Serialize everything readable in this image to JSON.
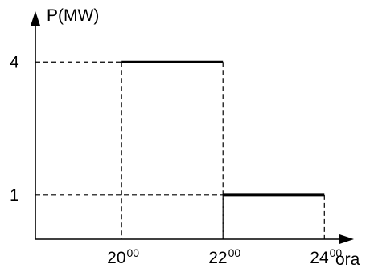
{
  "chart_data": {
    "type": "line",
    "ylabel": "P(MW)",
    "xlabel": "ora",
    "x_ticks": [
      {
        "value": 20,
        "main": "20",
        "sup": "00"
      },
      {
        "value": 22,
        "main": "22",
        "sup": "00"
      },
      {
        "value": 24,
        "main": "24",
        "sup": "00"
      }
    ],
    "y_ticks": [
      {
        "value": 1,
        "label": "1"
      },
      {
        "value": 4,
        "label": "4"
      }
    ],
    "segments": [
      {
        "x_start": 20,
        "x_end": 22,
        "y": 4
      },
      {
        "x_start": 22,
        "x_end": 24,
        "y": 1
      }
    ],
    "xlim": [
      18.3,
      24.9
    ],
    "ylim": [
      0,
      5.4
    ],
    "grid": false,
    "colors": {
      "line": "#000000",
      "guide": "#000000"
    }
  }
}
